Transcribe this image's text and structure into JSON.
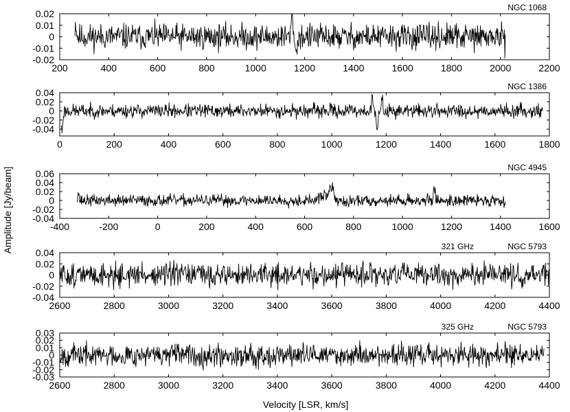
{
  "figure": {
    "ylabel": "Amplitude [Jy/beam]",
    "xlabel": "Velocity [LSR, km/s]"
  },
  "chart_data": [
    {
      "type": "line",
      "labels": [
        "NGC 1068"
      ],
      "xlim": [
        200,
        2200
      ],
      "ylim": [
        -0.02,
        0.02
      ],
      "xticks": [
        200,
        400,
        600,
        800,
        1000,
        1200,
        1400,
        1600,
        1800,
        2000,
        2200
      ],
      "yticks": [
        -0.02,
        -0.01,
        0,
        0.01,
        0.02
      ],
      "ytick_labels": [
        "-0.02",
        "-0.01",
        "0",
        "0.01",
        "0.02"
      ],
      "noise": {
        "x_start": 262,
        "x_end": 2020,
        "rms": 0.0055,
        "points": 900,
        "seed": 11
      },
      "features": [
        {
          "x": 1150,
          "amp": 0.018,
          "width": 4
        },
        {
          "x": 1165,
          "amp": -0.015,
          "width": 4
        },
        {
          "x": 265,
          "amp": 0.012,
          "width": 3
        },
        {
          "x": 2018,
          "amp": -0.012,
          "width": 3
        }
      ]
    },
    {
      "type": "line",
      "labels": [
        "NGC 1386"
      ],
      "xlim": [
        0,
        1800
      ],
      "ylim": [
        -0.055,
        0.04
      ],
      "xticks": [
        0,
        200,
        400,
        600,
        800,
        1000,
        1200,
        1400,
        1600,
        1800
      ],
      "yticks": [
        -0.04,
        -0.02,
        0,
        0.02,
        0.04
      ],
      "ytick_labels": [
        "-0.04",
        "-0.02",
        "0",
        "0.02",
        "0.04"
      ],
      "noise": {
        "x_start": 5,
        "x_end": 1775,
        "rms": 0.0075,
        "points": 1000,
        "seed": 23
      },
      "features": [
        {
          "x": 1167,
          "amp": -0.05,
          "width": 3
        },
        {
          "x": 1150,
          "amp": 0.025,
          "width": 3
        },
        {
          "x": 1185,
          "amp": 0.022,
          "width": 3
        },
        {
          "x": 8,
          "amp": -0.045,
          "width": 3
        }
      ]
    },
    {
      "type": "line",
      "labels": [
        "NGC 4945"
      ],
      "xlim": [
        -400,
        1600
      ],
      "ylim": [
        -0.04,
        0.06
      ],
      "xticks": [
        -400,
        -200,
        0,
        200,
        400,
        600,
        800,
        1000,
        1200,
        1400,
        1600
      ],
      "yticks": [
        -0.04,
        -0.02,
        0,
        0.02,
        0.04,
        0.06
      ],
      "ytick_labels": [
        "-0.04",
        "-0.02",
        "0",
        "0.02",
        "0.04",
        "0.06"
      ],
      "noise": {
        "x_start": -330,
        "x_end": 1420,
        "rms": 0.0065,
        "points": 950,
        "seed": 37
      },
      "features": [
        {
          "x": 710,
          "amp": 0.03,
          "width": 8
        },
        {
          "x": 680,
          "amp": 0.012,
          "width": 15
        },
        {
          "x": 770,
          "amp": -0.01,
          "width": 8
        },
        {
          "x": 1130,
          "amp": 0.025,
          "width": 4
        },
        {
          "x": -325,
          "amp": 0.02,
          "width": 3
        }
      ]
    },
    {
      "type": "line",
      "labels": [
        "321 GHz",
        "NGC 5793"
      ],
      "xlim": [
        2600,
        4400
      ],
      "ylim": [
        -0.04,
        0.04
      ],
      "xticks": [
        2600,
        2800,
        3000,
        3200,
        3400,
        3600,
        3800,
        4000,
        4200,
        4400
      ],
      "yticks": [
        -0.04,
        -0.02,
        0,
        0.02,
        0.04
      ],
      "ytick_labels": [
        "-0.04",
        "-0.02",
        "0",
        "0.02",
        "0.04"
      ],
      "noise": {
        "x_start": 2600,
        "x_end": 4400,
        "rms": 0.0105,
        "points": 1000,
        "seed": 51
      },
      "features": []
    },
    {
      "type": "line",
      "labels": [
        "325 GHz",
        "NGC 5793"
      ],
      "xlim": [
        2600,
        4400
      ],
      "ylim": [
        -0.03,
        0.03
      ],
      "xticks": [
        2600,
        2800,
        3000,
        3200,
        3400,
        3600,
        3800,
        4000,
        4200,
        4400
      ],
      "yticks": [
        -0.03,
        -0.02,
        -0.01,
        0,
        0.01,
        0.02,
        0.03
      ],
      "ytick_labels": [
        "-0.03",
        "-0.02",
        "-0.01",
        "0",
        "0.01",
        "0.02",
        "0.03"
      ],
      "noise": {
        "x_start": 2600,
        "x_end": 4380,
        "rms": 0.0075,
        "points": 1000,
        "seed": 67
      },
      "features": []
    }
  ]
}
